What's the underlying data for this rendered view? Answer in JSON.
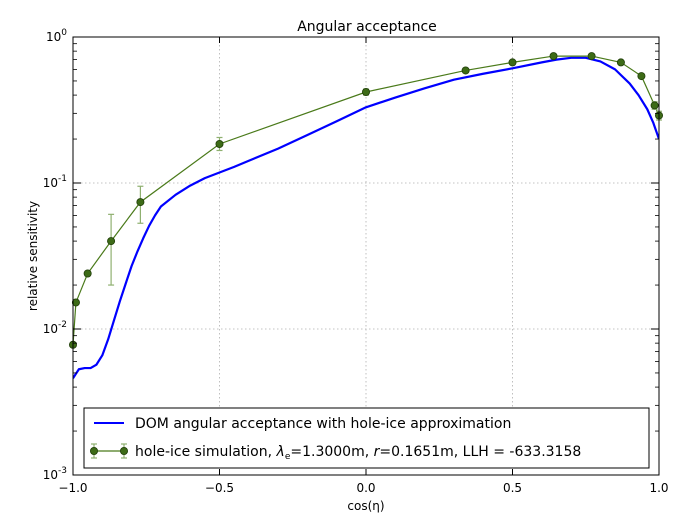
{
  "chart_data": {
    "type": "line",
    "title": "Angular acceptance",
    "xlabel": "cos(η)",
    "ylabel": "relative sensitivity",
    "xlim": [
      -1.0,
      1.0
    ],
    "ylim": [
      0.001,
      1.0
    ],
    "yscale": "log",
    "grid": true,
    "legend_position": "lower-right",
    "x_ticks": [
      {
        "value": -1.0,
        "label": "−1.0"
      },
      {
        "value": -0.5,
        "label": "−0.5"
      },
      {
        "value": 0.0,
        "label": "0.0"
      },
      {
        "value": 0.5,
        "label": "0.5"
      },
      {
        "value": 1.0,
        "label": "1.0"
      }
    ],
    "y_ticks": [
      {
        "value": 1.0,
        "base": "10",
        "exp": "0"
      },
      {
        "value": 0.1,
        "base": "10",
        "exp": "-1"
      },
      {
        "value": 0.01,
        "base": "10",
        "exp": "-2"
      },
      {
        "value": 0.001,
        "base": "10",
        "exp": "-3"
      }
    ],
    "series": [
      {
        "name": "DOM angular acceptance with hole-ice approximation",
        "style": "line",
        "color": "#0000ff",
        "x": [
          -1.0,
          -0.98,
          -0.96,
          -0.94,
          -0.92,
          -0.9,
          -0.88,
          -0.86,
          -0.84,
          -0.82,
          -0.8,
          -0.78,
          -0.76,
          -0.74,
          -0.72,
          -0.7,
          -0.65,
          -0.6,
          -0.55,
          -0.5,
          -0.45,
          -0.4,
          -0.3,
          -0.2,
          -0.1,
          0.0,
          0.1,
          0.2,
          0.3,
          0.4,
          0.5,
          0.6,
          0.65,
          0.7,
          0.75,
          0.8,
          0.85,
          0.9,
          0.93,
          0.96,
          0.98,
          1.0
        ],
        "y": [
          0.0046,
          0.0053,
          0.0054,
          0.0054,
          0.0057,
          0.0066,
          0.0085,
          0.0115,
          0.0155,
          0.0205,
          0.027,
          0.034,
          0.042,
          0.051,
          0.06,
          0.069,
          0.083,
          0.096,
          0.108,
          0.118,
          0.129,
          0.142,
          0.172,
          0.213,
          0.265,
          0.33,
          0.385,
          0.445,
          0.51,
          0.56,
          0.61,
          0.67,
          0.7,
          0.72,
          0.72,
          0.68,
          0.6,
          0.48,
          0.4,
          0.32,
          0.26,
          0.2
        ]
      },
      {
        "name": "hole-ice simulation, λe=1.3000m, r=0.1651m, LLH = -633.3158",
        "legend_parts": {
          "prefix": "hole-ice simulation, ",
          "lambda": "λ",
          "lambda_sub": "e",
          "lambda_val": "=1.3000m, ",
          "r": "r",
          "r_val": "=0.1651m, LLH = -633.3158"
        },
        "style": "line+markers",
        "color": "#4a7a1a",
        "x": [
          -1.0,
          -0.99,
          -0.95,
          -0.87,
          -0.77,
          -0.5,
          0.0,
          0.34,
          0.5,
          0.64,
          0.77,
          0.87,
          0.94,
          0.985,
          1.0
        ],
        "y": [
          0.0078,
          0.0152,
          0.024,
          0.04,
          0.074,
          0.185,
          0.42,
          0.59,
          0.67,
          0.74,
          0.74,
          0.67,
          0.54,
          0.34,
          0.29
        ],
        "err_lo": [
          0.0002,
          0.0005,
          0.0008,
          0.02,
          0.021,
          0.018,
          0.02,
          0.02,
          0.02,
          0.02,
          0.02,
          0.02,
          0.02,
          0.02,
          0.02
        ],
        "err_hi": [
          0.0002,
          0.0005,
          0.0008,
          0.021,
          0.021,
          0.02,
          0.02,
          0.02,
          0.02,
          0.02,
          0.02,
          0.02,
          0.02,
          0.02,
          0.02
        ]
      }
    ]
  }
}
